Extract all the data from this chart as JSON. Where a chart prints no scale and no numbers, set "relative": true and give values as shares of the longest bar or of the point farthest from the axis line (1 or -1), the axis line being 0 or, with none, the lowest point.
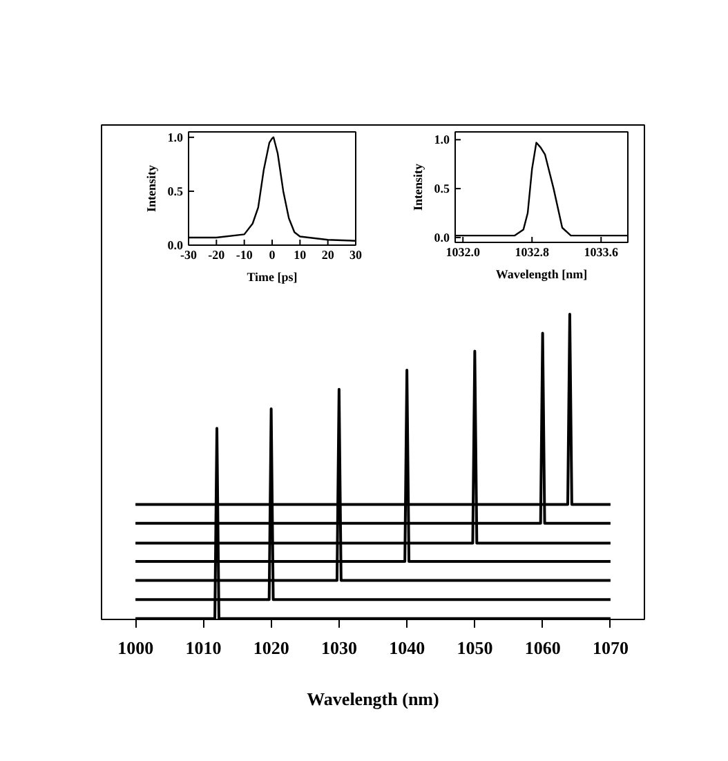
{
  "chart_data": [
    {
      "type": "line",
      "relative": true,
      "xlabel": "Wavelength (nm)",
      "xlim": [
        995,
        1075
      ],
      "xticks": [
        1000,
        1010,
        1020,
        1030,
        1040,
        1050,
        1060,
        1070
      ],
      "line_style": "solid",
      "series": [
        {
          "color": "#000000",
          "x": [
            1000,
            1011.7,
            1012,
            1012.3,
            1070
          ],
          "values": [
            0.003,
            0.003,
            0.626,
            0.003,
            0.003
          ]
        },
        {
          "color": "#000000",
          "x": [
            1000,
            1019.7,
            1020,
            1020.3,
            1070
          ],
          "values": [
            0.065,
            0.065,
            0.69,
            0.065,
            0.065
          ]
        },
        {
          "color": "#000000",
          "x": [
            1000,
            1029.7,
            1030,
            1030.3,
            1070
          ],
          "values": [
            0.128,
            0.128,
            0.754,
            0.128,
            0.128
          ]
        },
        {
          "color": "#000000",
          "x": [
            1000,
            1039.7,
            1040,
            1040.3,
            1070
          ],
          "values": [
            0.19,
            0.19,
            0.817,
            0.19,
            0.19
          ]
        },
        {
          "color": "#000000",
          "x": [
            1000,
            1049.7,
            1050,
            1050.3,
            1070
          ],
          "values": [
            0.25,
            0.25,
            0.879,
            0.25,
            0.25
          ]
        },
        {
          "color": "#000000",
          "x": [
            1000,
            1059.7,
            1060,
            1060.3,
            1070
          ],
          "values": [
            0.315,
            0.315,
            0.938,
            0.315,
            0.315
          ]
        },
        {
          "color": "#000000",
          "x": [
            1000,
            1063.7,
            1064,
            1064.3,
            1070
          ],
          "values": [
            0.377,
            0.377,
            1.0,
            0.377,
            0.377
          ]
        }
      ]
    },
    {
      "type": "line",
      "xlabel": "Time [ps]",
      "ylabel": "Intensity",
      "xlim": [
        -30,
        30
      ],
      "ylim": [
        0,
        1.05
      ],
      "xticks": [
        -30,
        -20,
        -10,
        0,
        10,
        20,
        30
      ],
      "yticks": [
        {
          "value": 0,
          "label": "0.0"
        },
        {
          "value": 0.5,
          "label": "0.5"
        },
        {
          "value": 1,
          "label": "1.0"
        }
      ],
      "line_style": "solid",
      "series": [
        {
          "color": "#000000",
          "x": [
            -30,
            -20,
            -10,
            -7,
            -5,
            -3,
            -1,
            0,
            0.5,
            2,
            4,
            6,
            8,
            10,
            20,
            30
          ],
          "values": [
            0.07,
            0.07,
            0.1,
            0.2,
            0.35,
            0.7,
            0.95,
            0.99,
            1.0,
            0.85,
            0.5,
            0.25,
            0.12,
            0.08,
            0.05,
            0.04
          ]
        }
      ]
    },
    {
      "type": "line",
      "xlabel": "Wavelength [nm]",
      "ylabel": "Intensity",
      "xlim": [
        1031.91,
        1033.91
      ],
      "ylim": [
        -0.05,
        1.08
      ],
      "xticks": [
        {
          "value": 1032.0,
          "label": "1032.0"
        },
        {
          "value": 1032.8,
          "label": "1032.8"
        },
        {
          "value": 1033.6,
          "label": "1033.6"
        }
      ],
      "yticks": [
        {
          "value": 0,
          "label": "0.0"
        },
        {
          "value": 0.5,
          "label": "0.5"
        },
        {
          "value": 1,
          "label": "1.0"
        }
      ],
      "line_style": "solid",
      "series": [
        {
          "color": "#000000",
          "x": [
            1031.91,
            1032.6,
            1032.7,
            1032.75,
            1032.8,
            1032.85,
            1032.9,
            1032.95,
            1033.05,
            1033.15,
            1033.25,
            1033.91
          ],
          "values": [
            0.02,
            0.02,
            0.08,
            0.25,
            0.7,
            0.97,
            0.92,
            0.85,
            0.5,
            0.1,
            0.02,
            0.02
          ]
        }
      ]
    }
  ]
}
